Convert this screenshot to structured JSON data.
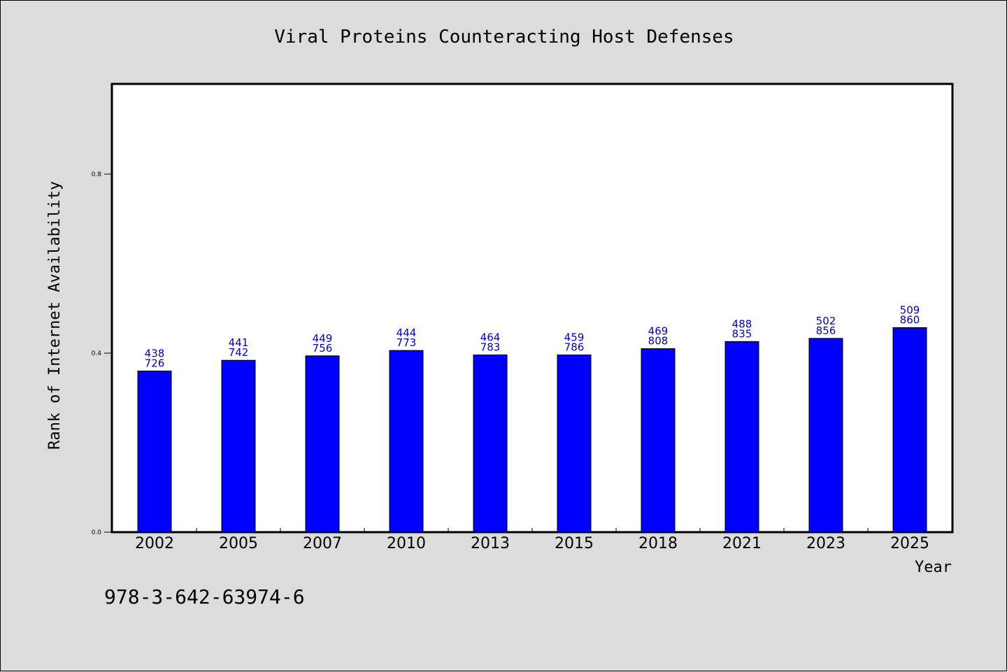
{
  "chart_data": {
    "type": "bar",
    "title": "Viral Proteins Counteracting Host Defenses",
    "xlabel": "Year",
    "ylabel": "Rank of Internet Availability",
    "categories": [
      "2002",
      "2005",
      "2007",
      "2010",
      "2013",
      "2015",
      "2018",
      "2021",
      "2023",
      "2025"
    ],
    "values": [
      0.36,
      0.384,
      0.394,
      0.406,
      0.396,
      0.396,
      0.41,
      0.426,
      0.433,
      0.457
    ],
    "data_labels_top": [
      "438",
      "441",
      "449",
      "444",
      "464",
      "459",
      "469",
      "488",
      "502",
      "509"
    ],
    "data_labels_bottom": [
      "726",
      "742",
      "756",
      "773",
      "783",
      "786",
      "808",
      "835",
      "856",
      "860"
    ],
    "ylim": [
      0,
      1.0
    ],
    "yticks": [
      0.0,
      0.4,
      0.8
    ],
    "ytick_labels": [
      "0.0",
      "0.4",
      "0.8"
    ],
    "grid": false,
    "bar_color": "#0000ff",
    "label_color": "#0000cc",
    "background_color": "#dcdcdc",
    "plot_background": "#ffffff"
  },
  "annotation": {
    "isbn": "978-3-642-63974-6"
  }
}
